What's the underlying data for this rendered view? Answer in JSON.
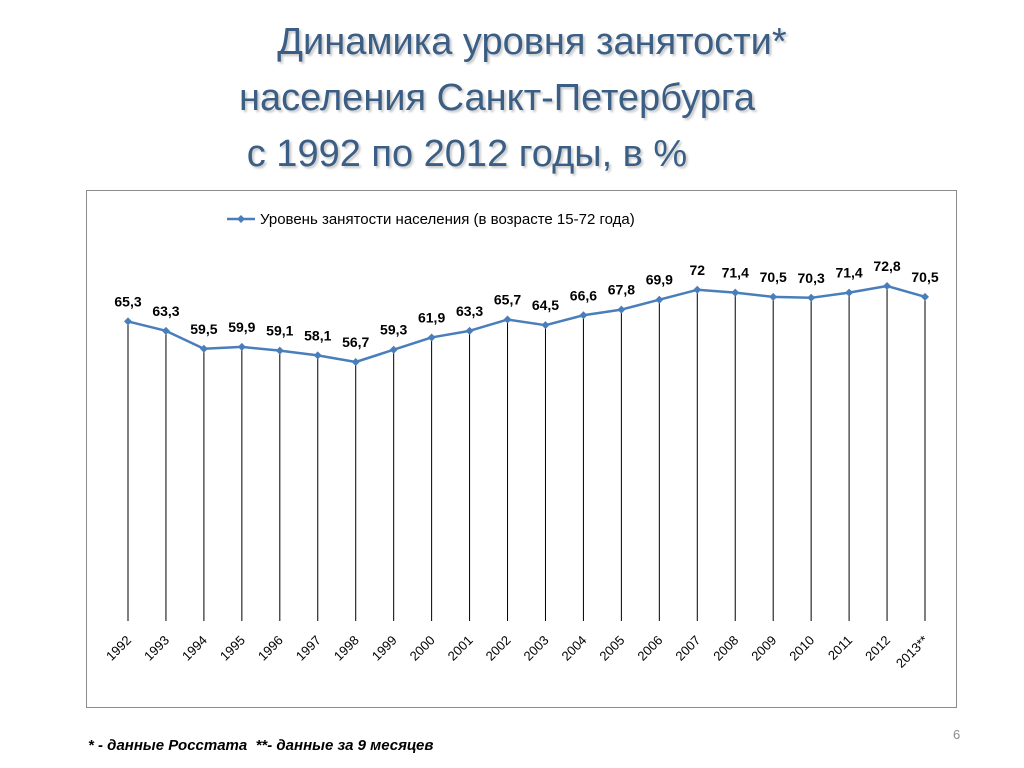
{
  "slide": {
    "title_lines": [
      "Динамика уровня занятости*",
      "населения Санкт-Петербурга",
      "с 1992 по 2012 годы, в %"
    ],
    "footnote": "* - данные Росстата  **- данные за 9 месяцев",
    "page_number": "6"
  },
  "chart_data": {
    "type": "line",
    "categories": [
      "1992",
      "1993",
      "1994",
      "1995",
      "1996",
      "1997",
      "1998",
      "1999",
      "2000",
      "2001",
      "2002",
      "2003",
      "2004",
      "2005",
      "2006",
      "2007",
      "2008",
      "2009",
      "2010",
      "2011",
      "2012",
      "2013**"
    ],
    "series": [
      {
        "name": "Уровень занятости населения (в возрасте 15-72 года)",
        "values": [
          65.3,
          63.3,
          59.5,
          59.9,
          59.1,
          58.1,
          56.7,
          59.3,
          61.9,
          63.3,
          65.7,
          64.5,
          66.6,
          67.8,
          69.9,
          72,
          71.4,
          70.5,
          70.3,
          71.4,
          72.8,
          70.5
        ],
        "labels": [
          "65,3",
          "63,3",
          "59,5",
          "59,9",
          "59,1",
          "58,1",
          "56,7",
          "59,3",
          "61,9",
          "63,3",
          "65,7",
          "64,5",
          "66,6",
          "67,8",
          "69,9",
          "72",
          "71,4",
          "70,5",
          "70,3",
          "71,4",
          "72,8",
          "70,5"
        ],
        "color": "#4a7ebb"
      }
    ],
    "legend_position": "top",
    "vertical_drop_lines": true,
    "gridlines": false,
    "y_axis_visible": false,
    "colors": {
      "line": "#4a7ebb",
      "drop_lines": "#000000",
      "labels": "#000000"
    }
  }
}
